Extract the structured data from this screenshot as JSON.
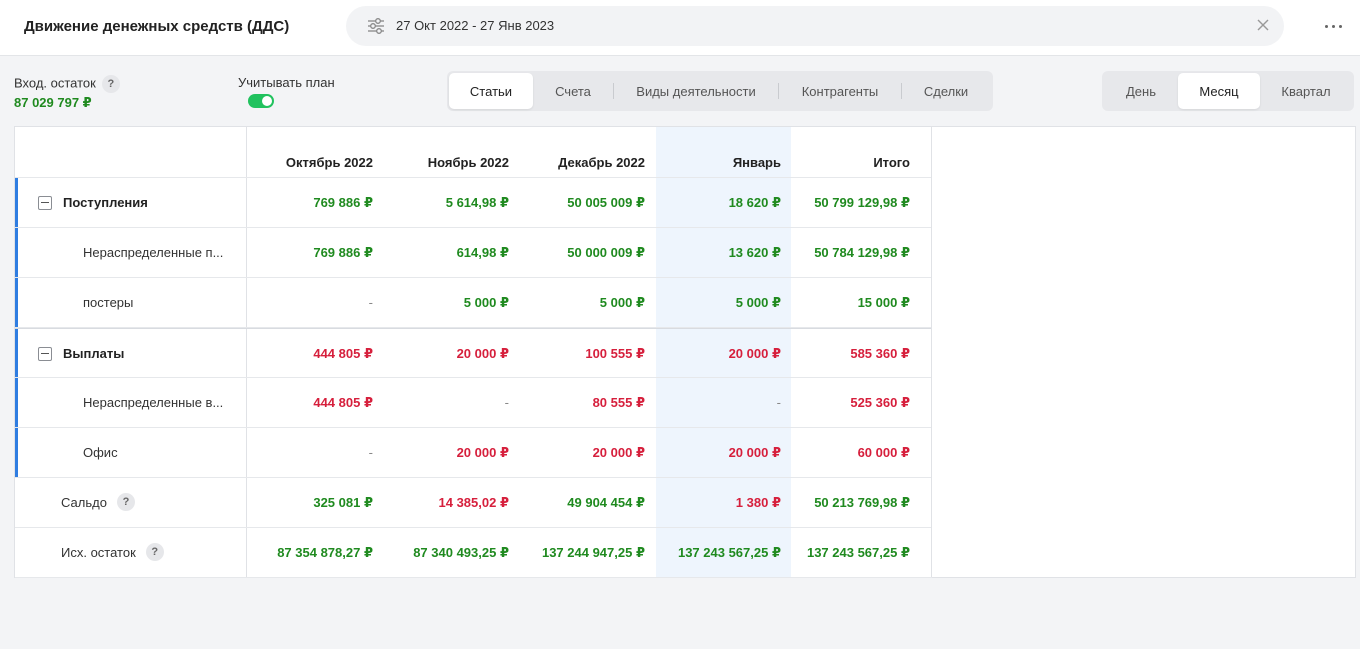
{
  "header": {
    "title": "Движение денежных средств (ДДС)",
    "date_range": "27 Окт 2022 - 27 Янв 2023",
    "filter_icon": "sliders-icon",
    "clear_icon": "close-icon",
    "more_icon": "more-horizontal-icon"
  },
  "opening_balance": {
    "label": "Вход. остаток",
    "help": "?",
    "value": "87 029 797 ₽"
  },
  "plan_toggle": {
    "label": "Учитывать план",
    "on": true
  },
  "tabs": [
    {
      "label": "Статьи",
      "active": true
    },
    {
      "label": "Счета",
      "active": false
    },
    {
      "label": "Виды деятельности",
      "active": false
    },
    {
      "label": "Контрагенты",
      "active": false
    },
    {
      "label": "Сделки",
      "active": false
    }
  ],
  "periods": [
    {
      "label": "День",
      "active": false
    },
    {
      "label": "Месяц",
      "active": true
    },
    {
      "label": "Квартал",
      "active": false
    }
  ],
  "table": {
    "columns": [
      "Октябрь 2022",
      "Ноябрь 2022",
      "Декабрь 2022",
      "Январь",
      "Итого"
    ],
    "rows": [
      {
        "name": "Поступления",
        "type": "group",
        "color": "green",
        "values": [
          "769 886 ₽",
          "5 614,98 ₽",
          "50 005 009 ₽",
          "18 620 ₽",
          "50 799 129,98 ₽"
        ]
      },
      {
        "name": "Нераспределенные п...",
        "type": "child",
        "color": "green",
        "values": [
          "769 886 ₽",
          "614,98 ₽",
          "50 000 009 ₽",
          "13 620 ₽",
          "50 784 129,98 ₽"
        ]
      },
      {
        "name": "постеры",
        "type": "child",
        "color": "green",
        "values": [
          "-",
          "5 000 ₽",
          "5 000 ₽",
          "5 000 ₽",
          "15 000 ₽"
        ]
      },
      {
        "name": "Выплаты",
        "type": "group",
        "color": "red",
        "values": [
          "444 805 ₽",
          "20 000 ₽",
          "100 555 ₽",
          "20 000 ₽",
          "585 360 ₽"
        ]
      },
      {
        "name": "Нераспределенные в...",
        "type": "child",
        "color": "red",
        "values": [
          "444 805 ₽",
          "-",
          "80 555 ₽",
          "-",
          "525 360 ₽"
        ]
      },
      {
        "name": "Офис",
        "type": "child",
        "color": "red",
        "values": [
          "-",
          "20 000 ₽",
          "20 000 ₽",
          "20 000 ₽",
          "60 000 ₽"
        ]
      },
      {
        "name": "Сальдо",
        "type": "summary",
        "help": "?",
        "values": [
          "325 081 ₽",
          "14 385,02 ₽",
          "49 904 454 ₽",
          "1 380 ₽",
          "50 213 769,98 ₽"
        ],
        "colors": [
          "green",
          "red",
          "green",
          "red",
          "green"
        ]
      },
      {
        "name": "Исх. остаток",
        "type": "summary",
        "help": "?",
        "values": [
          "87 354 878,27 ₽",
          "87 340 493,25 ₽",
          "137 244 947,25 ₽",
          "137 243 567,25 ₽",
          "137 243 567,25 ₽"
        ],
        "colors": [
          "green",
          "green",
          "green",
          "green",
          "green"
        ]
      }
    ]
  }
}
